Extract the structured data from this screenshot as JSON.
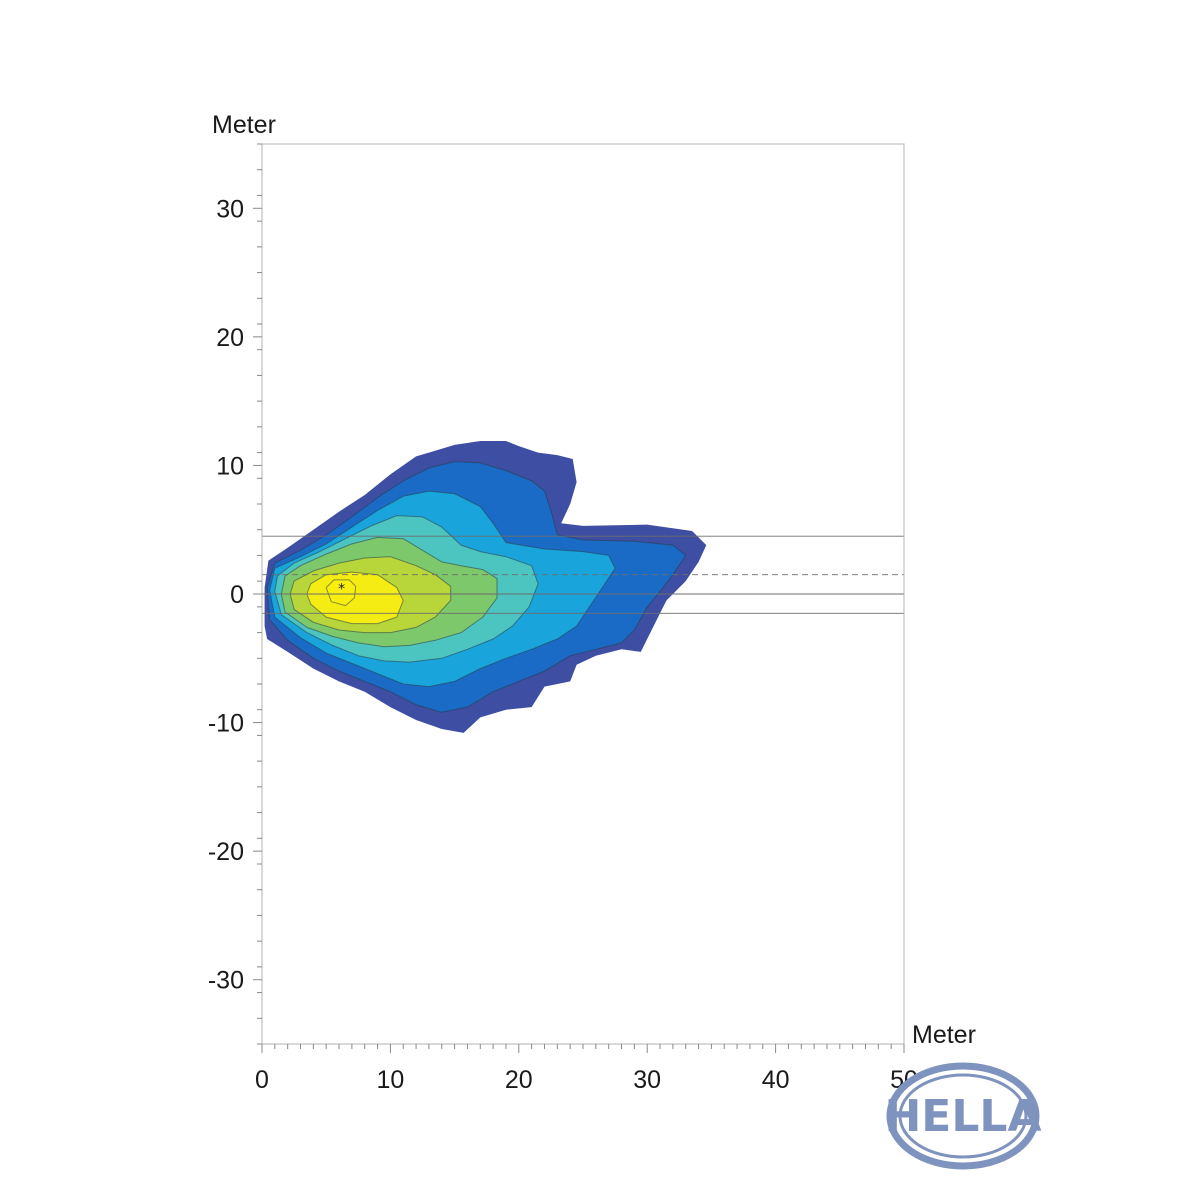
{
  "chart_data": {
    "type": "heatmap",
    "xlabel": "Meter",
    "ylabel": "Meter",
    "xlim": [
      0,
      50
    ],
    "ylim": [
      -35,
      35
    ],
    "xticks": [
      0,
      10,
      20,
      30,
      40,
      50
    ],
    "xtick_labels": [
      "0",
      "10",
      "20",
      "30",
      "40",
      "50"
    ],
    "yticks": [
      30,
      20,
      10,
      0,
      -10,
      -20,
      -30
    ],
    "ytick_labels": [
      "30",
      "20",
      "10",
      "0",
      "-10",
      "-20",
      "-30"
    ],
    "grid": false,
    "colorscale": [
      "#3d4ea3",
      "#1a6bc6",
      "#1aa4dc",
      "#4cc4c0",
      "#7cc86a",
      "#b8d63a",
      "#f5ec14"
    ],
    "peak": {
      "x": 6.2,
      "y": 0.5
    },
    "reference_lines": [
      {
        "y": 4.5,
        "style": "solid",
        "x_start": 0,
        "x_end": 50
      },
      {
        "y": 1.5,
        "style": "dashed",
        "x_start": 0,
        "x_end": 50
      },
      {
        "y": 0,
        "style": "solid",
        "x_start": 0,
        "x_end": 50
      },
      {
        "y": -1.5,
        "style": "solid",
        "x_start": 0,
        "x_end": 50
      }
    ],
    "isolux_regions": [
      {
        "level": 1,
        "color": "#3d4ea3",
        "outline": false,
        "points": [
          [
            0.2,
            -2.5
          ],
          [
            0.4,
            -3.5
          ],
          [
            2,
            -4.5
          ],
          [
            4,
            -5.8
          ],
          [
            6,
            -6.8
          ],
          [
            8,
            -7.6
          ],
          [
            10,
            -8.8
          ],
          [
            12,
            -9.8
          ],
          [
            14,
            -10.5
          ],
          [
            15.7,
            -10.8
          ],
          [
            17,
            -9.6
          ],
          [
            19,
            -9
          ],
          [
            21,
            -8.8
          ],
          [
            22,
            -7.2
          ],
          [
            24,
            -6.8
          ],
          [
            24.5,
            -5.5
          ],
          [
            26,
            -4.8
          ],
          [
            28,
            -4.3
          ],
          [
            29.5,
            -4.5
          ],
          [
            30.5,
            -2.5
          ],
          [
            31,
            -1.5
          ],
          [
            31.5,
            -0.5
          ],
          [
            32,
            0
          ],
          [
            33,
            1
          ],
          [
            34,
            2.5
          ],
          [
            34.6,
            3.8
          ],
          [
            33.5,
            4.9
          ],
          [
            30,
            5.4
          ],
          [
            25,
            5.3
          ],
          [
            23.3,
            5.5
          ],
          [
            24,
            7
          ],
          [
            24.5,
            8.7
          ],
          [
            24.2,
            10.5
          ],
          [
            23,
            10.8
          ],
          [
            21.5,
            11
          ],
          [
            20,
            11.5
          ],
          [
            19,
            11.9
          ],
          [
            17,
            11.9
          ],
          [
            15,
            11.6
          ],
          [
            13,
            11
          ],
          [
            12,
            10.7
          ],
          [
            10,
            9.3
          ],
          [
            8,
            7.7
          ],
          [
            6,
            6.4
          ],
          [
            4,
            5
          ],
          [
            2,
            3.6
          ],
          [
            0.5,
            2.6
          ],
          [
            0.2,
            0.5
          ]
        ]
      },
      {
        "level": 2,
        "color": "#1a6bc6",
        "outline": true,
        "points": [
          [
            0.6,
            -2
          ],
          [
            2,
            -3.6
          ],
          [
            4,
            -5
          ],
          [
            6,
            -6
          ],
          [
            8,
            -6.8
          ],
          [
            10,
            -7.6
          ],
          [
            12,
            -8.6
          ],
          [
            14,
            -9.2
          ],
          [
            16,
            -8.8
          ],
          [
            18,
            -7.6
          ],
          [
            20,
            -6.8
          ],
          [
            22,
            -6
          ],
          [
            24,
            -4.8
          ],
          [
            26,
            -4.3
          ],
          [
            28,
            -3.8
          ],
          [
            29,
            -2.8
          ],
          [
            30,
            -1
          ],
          [
            31,
            0.2
          ],
          [
            32,
            1.5
          ],
          [
            33,
            3
          ],
          [
            32,
            3.8
          ],
          [
            29,
            4.1
          ],
          [
            25,
            4.2
          ],
          [
            23,
            4.6
          ],
          [
            22.5,
            6.5
          ],
          [
            22,
            8
          ],
          [
            21,
            8.8
          ],
          [
            19,
            9.6
          ],
          [
            17,
            10.2
          ],
          [
            15,
            10.3
          ],
          [
            13,
            9.8
          ],
          [
            11,
            8.8
          ],
          [
            9,
            7.5
          ],
          [
            7,
            6
          ],
          [
            5,
            4.6
          ],
          [
            3,
            3.4
          ],
          [
            1,
            2.4
          ],
          [
            0.4,
            0.5
          ]
        ]
      },
      {
        "level": 3,
        "color": "#1aa4dc",
        "outline": true,
        "points": [
          [
            1,
            -1.8
          ],
          [
            3,
            -3.4
          ],
          [
            5,
            -4.6
          ],
          [
            7,
            -5.4
          ],
          [
            9,
            -6.2
          ],
          [
            11,
            -7
          ],
          [
            13,
            -7.2
          ],
          [
            15,
            -6.8
          ],
          [
            17,
            -5.8
          ],
          [
            19,
            -5
          ],
          [
            21,
            -4.3
          ],
          [
            23,
            -3.5
          ],
          [
            24.5,
            -2.5
          ],
          [
            25.5,
            -1
          ],
          [
            26.5,
            0.5
          ],
          [
            27.5,
            2
          ],
          [
            27,
            3
          ],
          [
            25,
            3.3
          ],
          [
            22,
            3.5
          ],
          [
            19,
            4
          ],
          [
            18,
            5.5
          ],
          [
            17,
            6.8
          ],
          [
            15,
            7.8
          ],
          [
            13,
            8
          ],
          [
            11,
            7.6
          ],
          [
            9,
            6.5
          ],
          [
            7,
            5.2
          ],
          [
            5,
            3.9
          ],
          [
            3,
            2.9
          ],
          [
            1,
            2
          ],
          [
            0.6,
            0.3
          ]
        ]
      },
      {
        "level": 4,
        "color": "#4cc4c0",
        "outline": true,
        "points": [
          [
            1.5,
            -1.6
          ],
          [
            3.5,
            -3
          ],
          [
            5.5,
            -4
          ],
          [
            7.5,
            -4.8
          ],
          [
            9.5,
            -5.2
          ],
          [
            11.5,
            -5.3
          ],
          [
            14,
            -5
          ],
          [
            16,
            -4.3
          ],
          [
            18,
            -3.5
          ],
          [
            19.5,
            -2.5
          ],
          [
            20.8,
            -1
          ],
          [
            21.5,
            0.8
          ],
          [
            21,
            2.2
          ],
          [
            19,
            2.9
          ],
          [
            17,
            3.3
          ],
          [
            15.5,
            3.8
          ],
          [
            14,
            5.2
          ],
          [
            12.5,
            6
          ],
          [
            10.5,
            6.1
          ],
          [
            8.5,
            5.3
          ],
          [
            6.5,
            4.3
          ],
          [
            4.5,
            3.3
          ],
          [
            2.5,
            2.4
          ],
          [
            1.2,
            1.4
          ],
          [
            1,
            0.2
          ]
        ]
      },
      {
        "level": 5,
        "color": "#7cc86a",
        "outline": true,
        "points": [
          [
            1.8,
            -1.4
          ],
          [
            3.5,
            -2.6
          ],
          [
            5.5,
            -3.3
          ],
          [
            7.5,
            -3.8
          ],
          [
            9.5,
            -4.1
          ],
          [
            11.5,
            -4
          ],
          [
            13.5,
            -3.6
          ],
          [
            15.5,
            -3
          ],
          [
            17.2,
            -1.8
          ],
          [
            18.3,
            -0.3
          ],
          [
            18.3,
            1.2
          ],
          [
            17.2,
            1.9
          ],
          [
            15.5,
            2.2
          ],
          [
            14,
            2.5
          ],
          [
            12.5,
            3.4
          ],
          [
            11,
            4.3
          ],
          [
            9,
            4.4
          ],
          [
            7,
            3.9
          ],
          [
            5,
            3.1
          ],
          [
            3,
            2.2
          ],
          [
            1.8,
            1.4
          ],
          [
            1.5,
            0
          ]
        ]
      },
      {
        "level": 6,
        "color": "#b8d63a",
        "outline": true,
        "points": [
          [
            2.5,
            -1.2
          ],
          [
            4,
            -2.2
          ],
          [
            6,
            -2.8
          ],
          [
            8,
            -3
          ],
          [
            10,
            -3
          ],
          [
            12,
            -2.6
          ],
          [
            13.5,
            -1.8
          ],
          [
            14.7,
            -0.5
          ],
          [
            14.7,
            0.6
          ],
          [
            13.5,
            1.5
          ],
          [
            12,
            2.2
          ],
          [
            10,
            2.9
          ],
          [
            8,
            2.8
          ],
          [
            6,
            2.4
          ],
          [
            4,
            1.8
          ],
          [
            2.5,
            1
          ],
          [
            2.2,
            0
          ]
        ]
      },
      {
        "level": 7,
        "color": "#f5ec14",
        "outline": true,
        "points": [
          [
            3.8,
            -0.8
          ],
          [
            5,
            -1.8
          ],
          [
            7,
            -2.3
          ],
          [
            9,
            -2.3
          ],
          [
            10.5,
            -1.8
          ],
          [
            11,
            -0.5
          ],
          [
            10.5,
            0.5
          ],
          [
            9,
            1.5
          ],
          [
            7,
            1.7
          ],
          [
            5,
            1.5
          ],
          [
            3.8,
            0.8
          ],
          [
            3.5,
            0
          ]
        ]
      },
      {
        "level": 8,
        "color": "#f8ee10",
        "outline": true,
        "points": [
          [
            5,
            0.5
          ],
          [
            5.4,
            -0.6
          ],
          [
            6.5,
            -0.9
          ],
          [
            7.2,
            -0.3
          ],
          [
            7.3,
            0.6
          ],
          [
            6.8,
            1.1
          ],
          [
            5.6,
            1.1
          ]
        ]
      }
    ]
  },
  "brand": {
    "logo_text": "HELLA",
    "logo_color": "#7f93bf"
  }
}
